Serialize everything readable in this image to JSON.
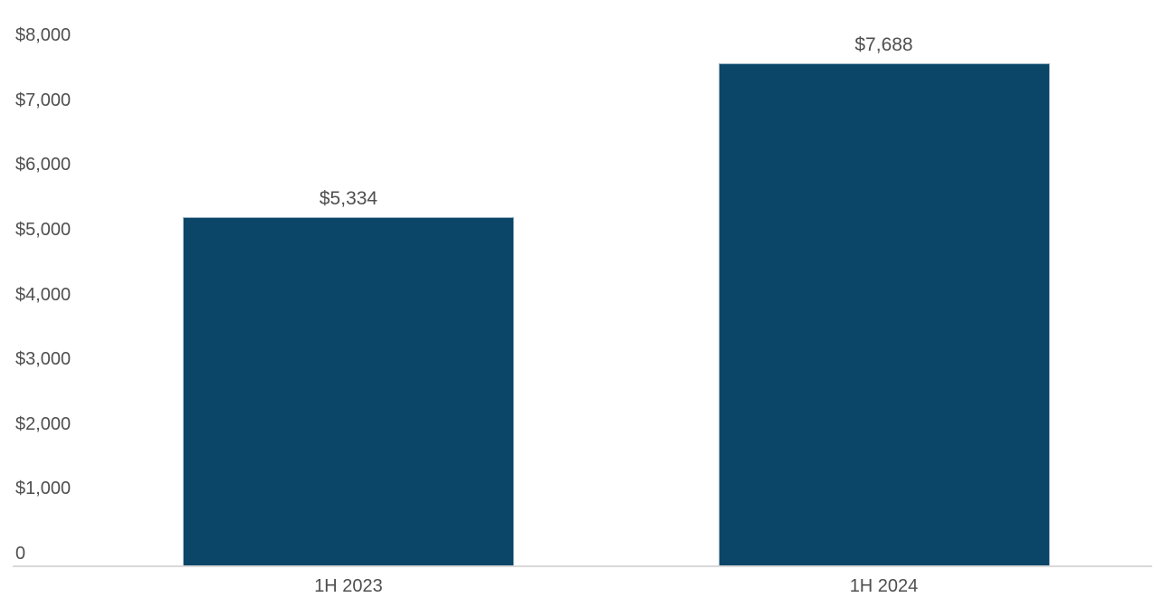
{
  "chart_data": {
    "type": "bar",
    "title": "",
    "xlabel": "",
    "ylabel": "",
    "categories": [
      "1H 2023",
      "1H 2024"
    ],
    "values": [
      5334,
      7688
    ],
    "value_labels": [
      "$5,334",
      "$7,688"
    ],
    "ylim": [
      0,
      8000
    ],
    "y_ticks": [
      {
        "value": 0,
        "label": "0"
      },
      {
        "value": 1000,
        "label": "$1,000"
      },
      {
        "value": 2000,
        "label": "$2,000"
      },
      {
        "value": 3000,
        "label": "$3,000"
      },
      {
        "value": 4000,
        "label": "$4,000"
      },
      {
        "value": 5000,
        "label": "$5,000"
      },
      {
        "value": 6000,
        "label": "$6,000"
      },
      {
        "value": 7000,
        "label": "$7,000"
      },
      {
        "value": 8000,
        "label": "$8,000"
      }
    ],
    "grid": "off",
    "legend": "none",
    "bar_color": "#0B4669",
    "bar_edge_color": "#9FB6C7",
    "axis_line_color": "#D9D9D9",
    "text_color": "#4F4F4F",
    "background_color": "#FFFFFF"
  }
}
